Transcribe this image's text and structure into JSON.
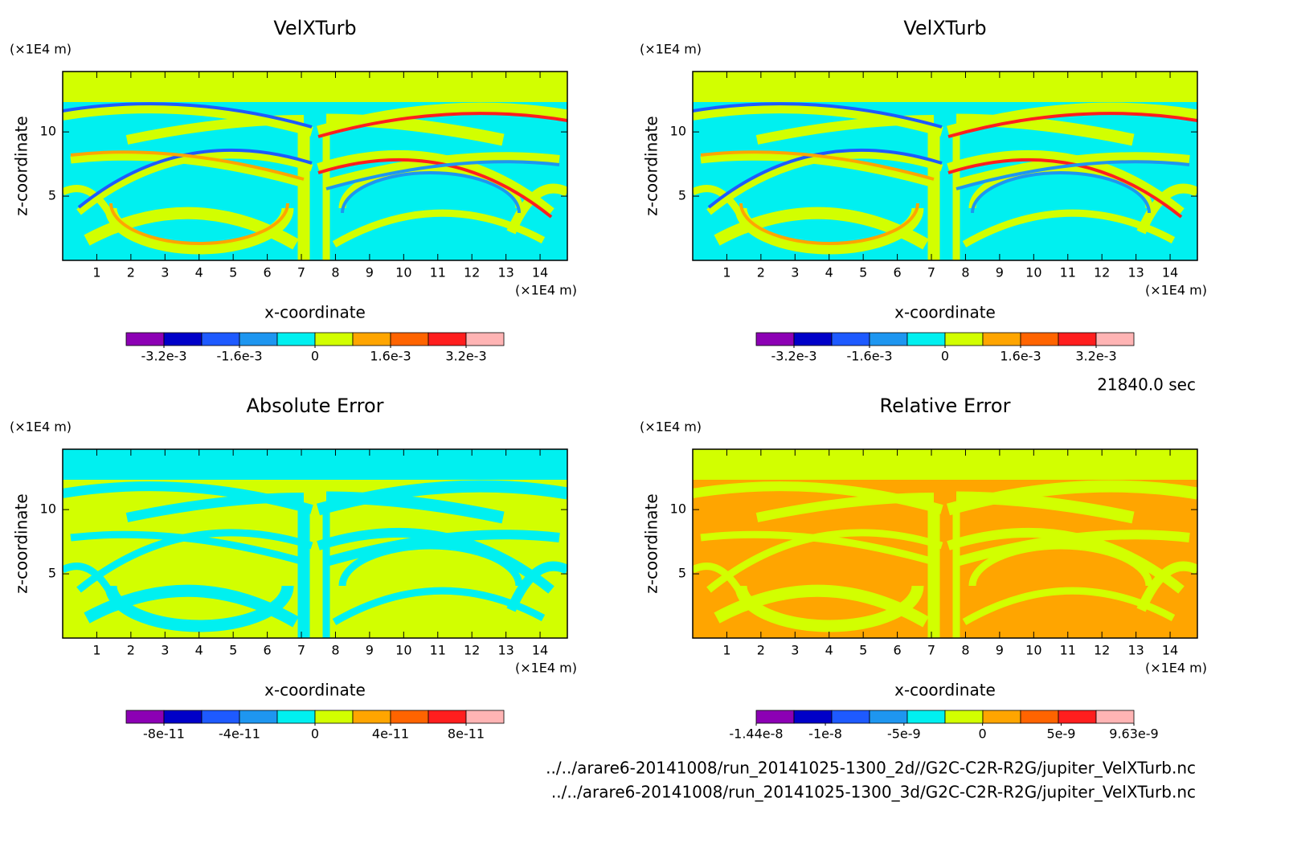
{
  "chart_data": [
    {
      "type": "contour",
      "title": "VelXTurb",
      "x_label": "x-coordinate",
      "y_label": "z-coordinate",
      "x_unit": "(×1E4 m)",
      "y_unit": "(×1E4 m)",
      "xlim": [
        0,
        14.8
      ],
      "ylim": [
        0,
        14.7
      ],
      "xticks": [
        1,
        2,
        3,
        4,
        5,
        6,
        7,
        8,
        9,
        10,
        11,
        12,
        13,
        14
      ],
      "yticks": [
        5,
        10
      ],
      "colorbar": {
        "lim": [
          -0.004,
          0.004
        ],
        "colors": [
          "#8c00b4",
          "#0000c8",
          "#1e5aff",
          "#1e96f0",
          "#00f0f0",
          "#d2ff00",
          "#ffa500",
          "#ff6400",
          "#ff1e1e",
          "#ffb4b4"
        ],
        "ticks": [
          {
            "value": -0.0032,
            "label": "-3.2e-3"
          },
          {
            "value": -0.0016,
            "label": "-1.6e-3"
          },
          0,
          {
            "value": 0.0016,
            "label": "1.6e-3"
          },
          {
            "value": 0.0032,
            "label": "3.2e-3"
          }
        ]
      }
    },
    {
      "type": "contour",
      "title": "VelXTurb",
      "x_label": "x-coordinate",
      "y_label": "z-coordinate",
      "x_unit": "(×1E4 m)",
      "y_unit": "(×1E4 m)",
      "xlim": [
        0,
        14.8
      ],
      "ylim": [
        0,
        14.7
      ],
      "xticks": [
        1,
        2,
        3,
        4,
        5,
        6,
        7,
        8,
        9,
        10,
        11,
        12,
        13,
        14
      ],
      "yticks": [
        5,
        10
      ],
      "colorbar": {
        "lim": [
          -0.004,
          0.004
        ],
        "colors": [
          "#8c00b4",
          "#0000c8",
          "#1e5aff",
          "#1e96f0",
          "#00f0f0",
          "#d2ff00",
          "#ffa500",
          "#ff6400",
          "#ff1e1e",
          "#ffb4b4"
        ],
        "ticks": [
          {
            "value": -0.0032,
            "label": "-3.2e-3"
          },
          {
            "value": -0.0016,
            "label": "-1.6e-3"
          },
          0,
          {
            "value": 0.0016,
            "label": "1.6e-3"
          },
          {
            "value": 0.0032,
            "label": "3.2e-3"
          }
        ]
      }
    },
    {
      "type": "contour",
      "title": "Absolute Error",
      "x_label": "x-coordinate",
      "y_label": "z-coordinate",
      "x_unit": "(×1E4 m)",
      "y_unit": "(×1E4 m)",
      "xlim": [
        0,
        14.8
      ],
      "ylim": [
        0,
        14.7
      ],
      "xticks": [
        1,
        2,
        3,
        4,
        5,
        6,
        7,
        8,
        9,
        10,
        11,
        12,
        13,
        14
      ],
      "yticks": [
        5,
        10
      ],
      "colorbar": {
        "lim": [
          -1e-10,
          1e-10
        ],
        "colors": [
          "#8c00b4",
          "#0000c8",
          "#1e5aff",
          "#1e96f0",
          "#00f0f0",
          "#d2ff00",
          "#ffa500",
          "#ff6400",
          "#ff1e1e",
          "#ffb4b4"
        ],
        "ticks": [
          {
            "value": -8e-11,
            "label": "-8e-11"
          },
          {
            "value": -4e-11,
            "label": "-4e-11"
          },
          0,
          {
            "value": 4e-11,
            "label": "4e-11"
          },
          {
            "value": 8e-11,
            "label": "8e-11"
          }
        ]
      }
    },
    {
      "type": "contour",
      "title": "Relative Error",
      "x_label": "x-coordinate",
      "y_label": "z-coordinate",
      "x_unit": "(×1E4 m)",
      "y_unit": "(×1E4 m)",
      "xlim": [
        0,
        14.8
      ],
      "ylim": [
        0,
        14.7
      ],
      "xticks": [
        1,
        2,
        3,
        4,
        5,
        6,
        7,
        8,
        9,
        10,
        11,
        12,
        13,
        14
      ],
      "yticks": [
        5,
        10
      ],
      "colorbar": {
        "lim": [
          -1.44e-08,
          9.63e-09
        ],
        "colors": [
          "#8c00b4",
          "#0000c8",
          "#1e5aff",
          "#1e96f0",
          "#00f0f0",
          "#d2ff00",
          "#ffa500",
          "#ff6400",
          "#ff1e1e",
          "#ffb4b4"
        ],
        "ticks": [
          {
            "value": -1.44e-08,
            "label": "-1.44e-8"
          },
          {
            "value": -1e-08,
            "label": "-1e-8"
          },
          {
            "value": -5e-09,
            "label": "-5e-9"
          },
          0,
          {
            "value": 5e-09,
            "label": "5e-9"
          },
          {
            "value": 9.63e-09,
            "label": "9.63e-9"
          }
        ]
      }
    }
  ],
  "annotations": {
    "time": "21840.0 sec",
    "files": [
      "../../arare6-20141008/run_20141025-1300_2d//G2C-C2R-R2G/jupiter_VelXTurb.nc",
      "../../arare6-20141008/run_20141025-1300_3d/G2C-C2R-R2G/jupiter_VelXTurb.nc"
    ]
  }
}
